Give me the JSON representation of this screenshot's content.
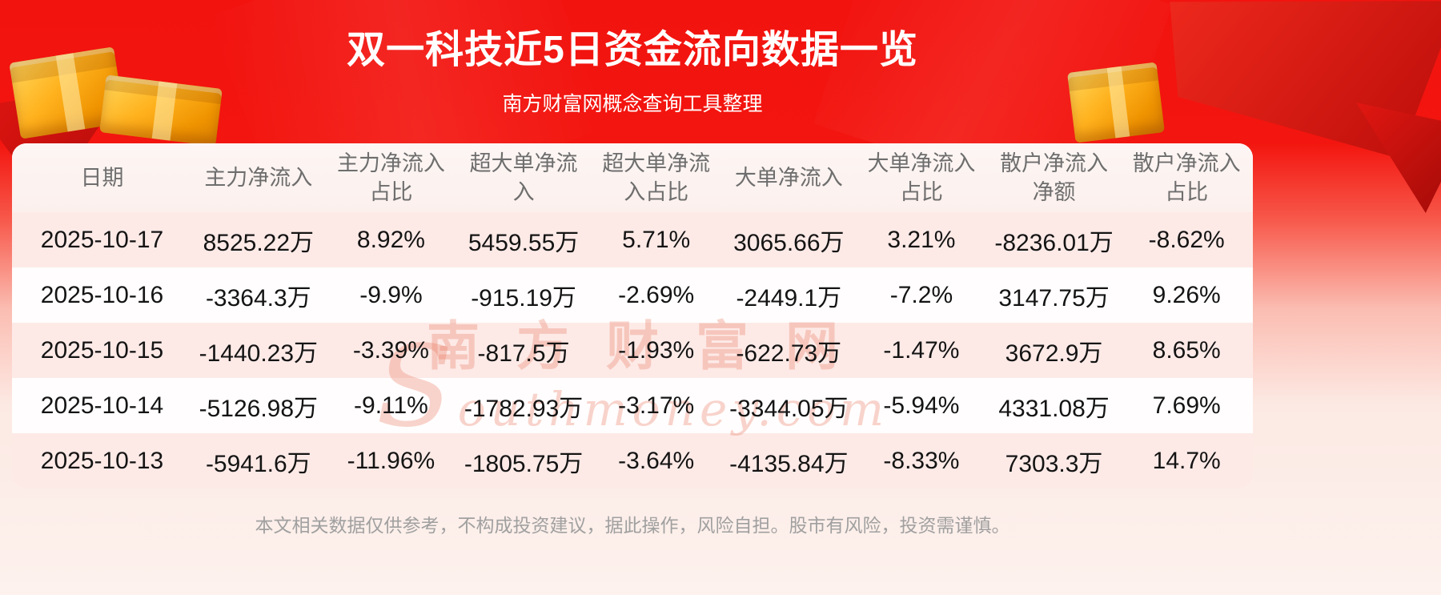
{
  "colors": {
    "banner_red": "#f3140f",
    "row_pink": "#fdeae7",
    "panel_white": "#fffdfd",
    "gold_accent": "#ffb21e",
    "header_text": "#6e6e6e",
    "body_text": "#141414",
    "footer_text": "#a0a0a0",
    "watermark": "#e9745a"
  },
  "header": {
    "title": "双一科技近5日资金流向数据一览",
    "subtitle": "南方财富网概念查询工具整理"
  },
  "chart_data": {
    "type": "table",
    "title": "双一科技近5日资金流向数据一览",
    "subtitle": "南方财富网概念查询工具整理",
    "columns": [
      "日期",
      "主力净流入",
      "主力净流入占比",
      "超大单净流入",
      "超大单净流入占比",
      "大单净流入",
      "大单净流入占比",
      "散户净流入净额",
      "散户净流入占比"
    ],
    "rows": [
      [
        "2025-10-17",
        "8525.22万",
        "8.92%",
        "5459.55万",
        "5.71%",
        "3065.66万",
        "3.21%",
        "-8236.01万",
        "-8.62%"
      ],
      [
        "2025-10-16",
        "-3364.3万",
        "-9.9%",
        "-915.19万",
        "-2.69%",
        "-2449.1万",
        "-7.2%",
        "3147.75万",
        "9.26%"
      ],
      [
        "2025-10-15",
        "-1440.23万",
        "-3.39%",
        "-817.5万",
        "-1.93%",
        "-622.73万",
        "-1.47%",
        "3672.9万",
        "8.65%"
      ],
      [
        "2025-10-14",
        "-5126.98万",
        "-9.11%",
        "-1782.93万",
        "-3.17%",
        "-3344.05万",
        "-5.94%",
        "4331.08万",
        "7.69%"
      ],
      [
        "2025-10-13",
        "-5941.6万",
        "-11.96%",
        "-1805.75万",
        "-3.64%",
        "-4135.84万",
        "-8.33%",
        "7303.3万",
        "14.7%"
      ]
    ]
  },
  "watermark": {
    "brand_cn": "南方财富网",
    "brand_en": "Southmoney.com"
  },
  "footer": {
    "disclaimer": "本文相关数据仅供参考，不构成投资建议，据此操作，风险自担。股市有风险，投资需谨慎。"
  }
}
